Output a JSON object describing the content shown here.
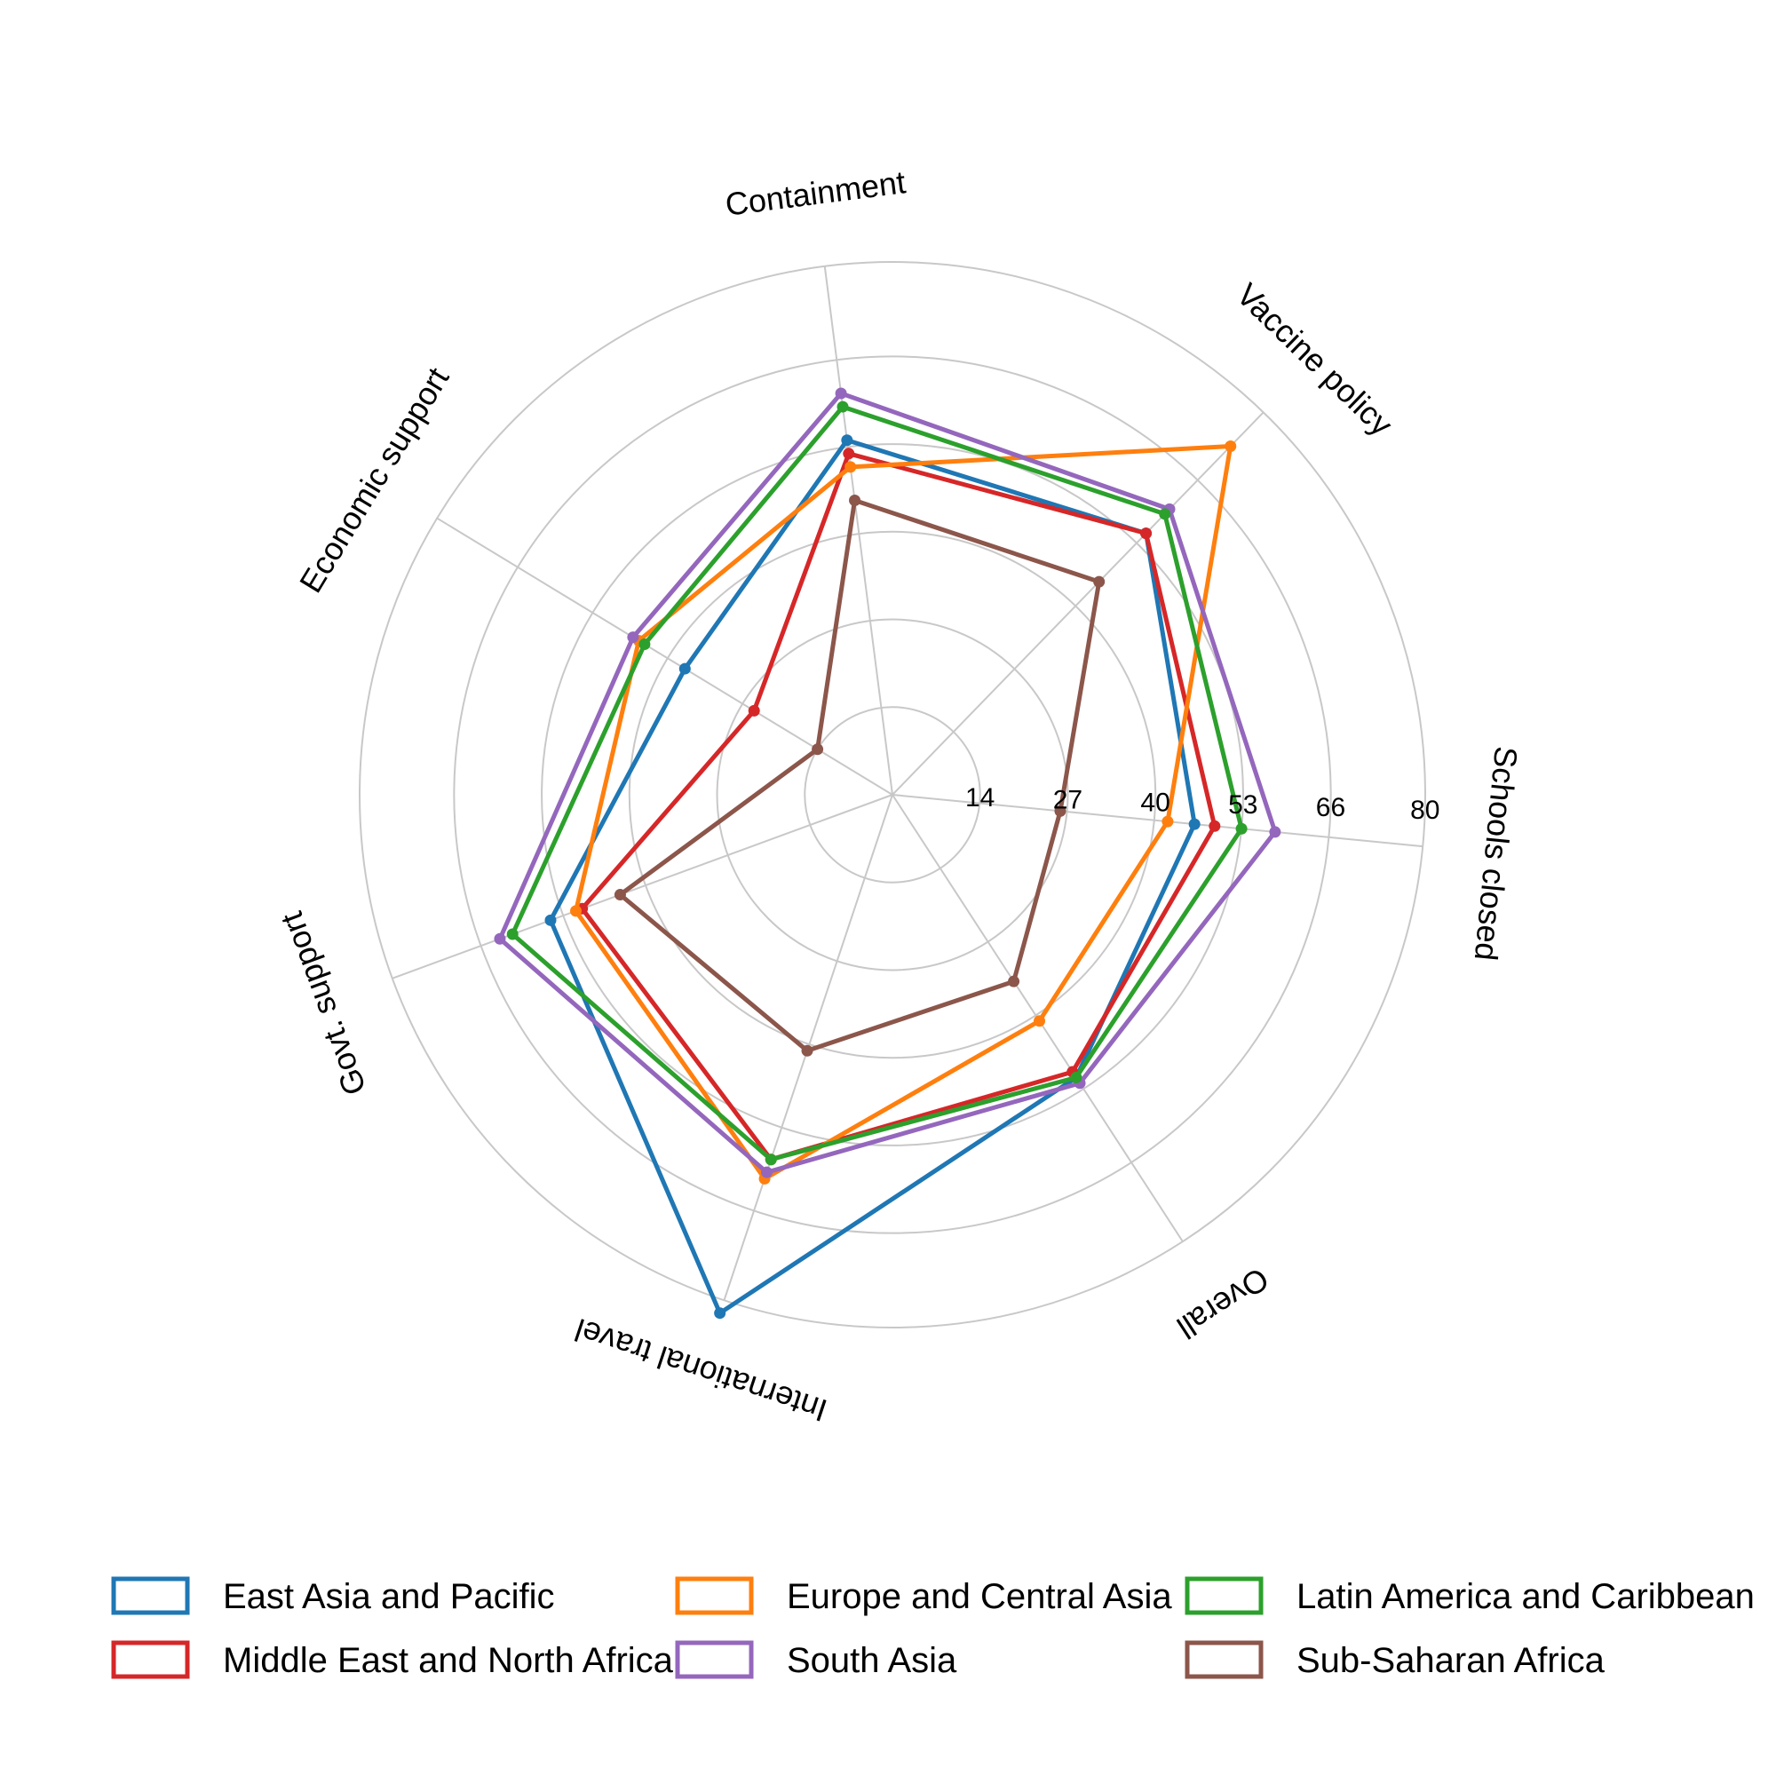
{
  "chart_data": {
    "type": "radar",
    "axes": [
      "Containment",
      "Vaccine policy",
      "Schools closed",
      "Overall",
      "International travel",
      "Govt. support",
      "Economic support"
    ],
    "radial_ticks": [
      14,
      27,
      40,
      53,
      66,
      80
    ],
    "rlim": [
      1,
      80
    ],
    "grid": true,
    "legend_position": "bottom",
    "series": [
      {
        "name": "East Asia and Pacific",
        "color": "#1f77b4",
        "values": [
          54,
          55,
          46,
          51,
          82,
          55,
          37
        ]
      },
      {
        "name": "Middle East and North Africa",
        "color": "#d62728",
        "values": [
          52,
          55,
          49,
          50,
          58,
          50,
          25
        ]
      },
      {
        "name": "Europe and Central Asia",
        "color": "#ff7f0e",
        "values": [
          50,
          73,
          42,
          41,
          61,
          51,
          45
        ]
      },
      {
        "name": "South Asia",
        "color": "#9467bd",
        "values": [
          61,
          60,
          58,
          52,
          60,
          63,
          46
        ]
      },
      {
        "name": "Latin America and Caribbean",
        "color": "#2ca02c",
        "values": [
          59,
          59,
          53,
          51,
          58,
          61,
          44
        ]
      },
      {
        "name": "Sub-Saharan Africa",
        "color": "#8c564b",
        "values": [
          45,
          45,
          26,
          34,
          41,
          44,
          14
        ]
      }
    ]
  },
  "legend_items": [
    {
      "label": "East Asia and Pacific",
      "color": "#1f77b4"
    },
    {
      "label": "Europe and Central Asia",
      "color": "#ff7f0e"
    },
    {
      "label": "Latin America and Caribbean",
      "color": "#2ca02c"
    },
    {
      "label": "Middle East and North Africa",
      "color": "#d62728"
    },
    {
      "label": "South Asia",
      "color": "#9467bd"
    },
    {
      "label": "Sub-Saharan Africa",
      "color": "#8c564b"
    }
  ]
}
